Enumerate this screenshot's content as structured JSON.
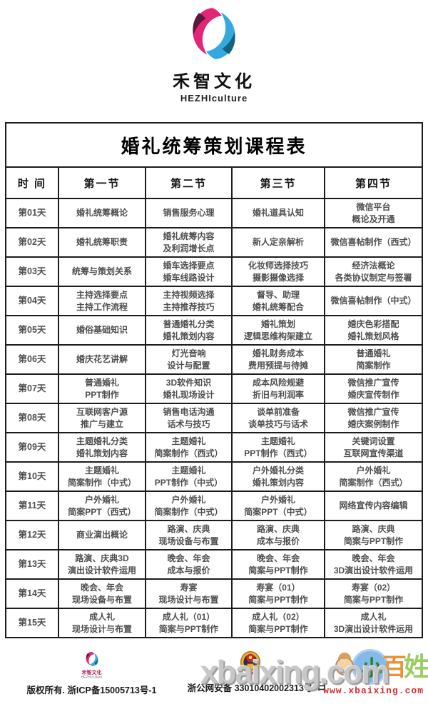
{
  "brand": {
    "name": "禾智文化",
    "name_en": "HEZHIculture"
  },
  "icons": {
    "brand_logo": "pink-blue-swirl-logo",
    "footer_logo": "pink-blue-swirl-logo-small",
    "police_badge": "china-public-security-badge",
    "site_logo": "xiaobaixing-cartoon-logo"
  },
  "colors": {
    "logo_pink": "#e32575",
    "logo_dark_purple": "#571a3c",
    "logo_blue": "#35a8dd",
    "logo_dark_teal": "#14627e",
    "table_border": "#1c1c1c",
    "cell_text": "#4f4f4f",
    "watermark_gray": "#c7c7c7",
    "url_red": "#d92b2b"
  },
  "table": {
    "title": "婚礼统筹策划课程表",
    "headers": [
      "时 间",
      "第一节",
      "第二节",
      "第三节",
      "第四节"
    ],
    "rows": [
      {
        "day": "第01天",
        "cells": [
          [
            "婚礼统筹概论"
          ],
          [
            "销售服务心理"
          ],
          [
            "婚礼道具认知"
          ],
          [
            "微信平台",
            "概论及开通"
          ]
        ]
      },
      {
        "day": "第02天",
        "cells": [
          [
            "婚礼统筹职责"
          ],
          [
            "婚礼统筹内容",
            "及利润增长点"
          ],
          [
            "新人定亲解析"
          ],
          [
            "微信喜帖制作（西式）"
          ]
        ]
      },
      {
        "day": "第03天",
        "cells": [
          [
            "统筹与策划关系"
          ],
          [
            "婚车选择要点",
            "婚车线路设计"
          ],
          [
            "化妆师选择技巧",
            "摄影摄像选择"
          ],
          [
            "经济法概论",
            "各类协议制定与签署"
          ]
        ]
      },
      {
        "day": "第04天",
        "cells": [
          [
            "主持选择要点",
            "主持工作流程"
          ],
          [
            "主持视频选择",
            "主持推荐技巧"
          ],
          [
            "督导、助理",
            "婚礼统筹配合"
          ],
          [
            "微信喜帖制作（中式）"
          ]
        ]
      },
      {
        "day": "第05天",
        "cells": [
          [
            "婚俗基础知识"
          ],
          [
            "普通婚礼分类",
            "婚礼策划内容"
          ],
          [
            "婚礼策划",
            "逻辑思维构架建立"
          ],
          [
            "婚庆色彩搭配",
            "婚礼策划风格"
          ]
        ]
      },
      {
        "day": "第06天",
        "cells": [
          [
            "婚庆花艺讲解"
          ],
          [
            "灯光音响",
            "设计与配置"
          ],
          [
            "婚礼财务成本",
            "费用预提与待摊"
          ],
          [
            "普通婚礼",
            "简案制作"
          ]
        ]
      },
      {
        "day": "第07天",
        "cells": [
          [
            "普通婚礼",
            "PPT制作"
          ],
          [
            "3D软件知识",
            "婚礼现场设计"
          ],
          [
            "成本风险规避",
            "折旧与利润率"
          ],
          [
            "微信推广宣传",
            "婚庆宣传制作"
          ]
        ]
      },
      {
        "day": "第08天",
        "cells": [
          [
            "互联网客户源",
            "推广与建立"
          ],
          [
            "销售电话沟通",
            "话术与技巧"
          ],
          [
            "谈单前准备",
            "谈单技巧与话术"
          ],
          [
            "微信推广宣传",
            "婚庆案例制作"
          ]
        ]
      },
      {
        "day": "第09天",
        "cells": [
          [
            "主题婚礼分类",
            "婚礼策划内容"
          ],
          [
            "主题婚礼",
            "简案制作（西式）"
          ],
          [
            "主题婚礼",
            "PPT制作（西式）"
          ],
          [
            "关键词设置",
            "互联网宣传渠道"
          ]
        ]
      },
      {
        "day": "第10天",
        "cells": [
          [
            "主题婚礼",
            "简案制作（中式）"
          ],
          [
            "主题婚礼",
            "PPT制作（中式）"
          ],
          [
            "户外婚礼分类",
            "婚礼策划内容"
          ],
          [
            "户外婚礼",
            "简案制作（西式）"
          ]
        ]
      },
      {
        "day": "第11天",
        "cells": [
          [
            "户外婚礼",
            "简案PPT（西式）"
          ],
          [
            "户外婚礼",
            "简案制作（中式）"
          ],
          [
            "户外婚礼",
            "简案PPT（中式）"
          ],
          [
            "网络宣传内容编辑"
          ]
        ]
      },
      {
        "day": "第12天",
        "cells": [
          [
            "商业演出概论"
          ],
          [
            "路演、庆典",
            "现场设备与布置"
          ],
          [
            "路演、庆典",
            "成本与报价"
          ],
          [
            "路演、庆典",
            "简案与PPT制作"
          ]
        ]
      },
      {
        "day": "第13天",
        "cells": [
          [
            "路演、庆典3D",
            "演出设计软件运用"
          ],
          [
            "晚会、年会",
            "成本与报价"
          ],
          [
            "晚会、年会",
            "简案与PPT制作"
          ],
          [
            "晚会、年会",
            "3D演出设计软件运用"
          ]
        ]
      },
      {
        "day": "第14天",
        "cells": [
          [
            "晚会、年会",
            "现场设备与布置"
          ],
          [
            "寿宴",
            "现场设计与布置"
          ],
          [
            "寿宴（01）",
            "简案与PPT制作"
          ],
          [
            "寿宴（02）",
            "简案与PPT制作"
          ]
        ]
      },
      {
        "day": "第15天",
        "cells": [
          [
            "成人礼",
            "现场设计与布置"
          ],
          [
            "成人礼（01）",
            "简案与PPT制作"
          ],
          [
            "成人礼（02）",
            "简案与PPT制作"
          ],
          [
            "成人礼",
            "3D演出设计软件运用"
          ]
        ]
      }
    ]
  },
  "footer": {
    "brand_small": {
      "name": "禾智文化",
      "name_en": "HEZHIculture"
    },
    "copyright": "版权所有. 浙ICP备15005713号-1",
    "police": "浙公网安备 33010402002313号",
    "watermark": {
      "text": "xbaixing.com",
      "url": "www.xbaixing.com"
    },
    "site_logo": {
      "chars": [
        "小",
        "百",
        "姓"
      ],
      "char_corner": "日"
    }
  }
}
